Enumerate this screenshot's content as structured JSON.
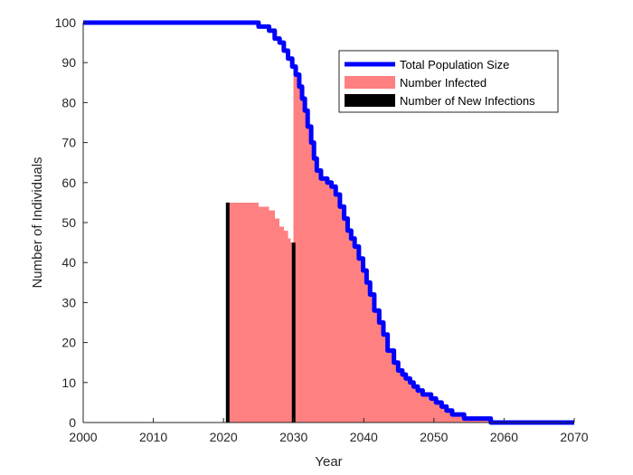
{
  "chart_data": {
    "type": "area",
    "title": "",
    "xlabel": "Year",
    "ylabel": "Number of Individuals",
    "xlim": [
      2000,
      2070
    ],
    "ylim": [
      0,
      100
    ],
    "xticks": [
      2000,
      2010,
      2020,
      2030,
      2040,
      2050,
      2060,
      2070
    ],
    "yticks": [
      0,
      10,
      20,
      30,
      40,
      50,
      60,
      70,
      80,
      90,
      100
    ],
    "grid": false,
    "legend_position": "top-right",
    "series": [
      {
        "name": "Total Population Size",
        "kind": "line",
        "color": "#0000ff",
        "x": [
          2000,
          2024.8,
          2025,
          2026.2,
          2026.5,
          2027.3,
          2028,
          2028.6,
          2029.2,
          2029.8,
          2030.3,
          2030.8,
          2031.2,
          2031.6,
          2032,
          2032.5,
          2032.9,
          2033.3,
          2033.9,
          2034.8,
          2035.4,
          2036,
          2036.6,
          2037.2,
          2037.7,
          2038.2,
          2038.7,
          2039.3,
          2039.9,
          2040.4,
          2040.9,
          2041.5,
          2042.2,
          2042.8,
          2043.4,
          2044.3,
          2044.9,
          2045.5,
          2046,
          2046.6,
          2047.1,
          2047.7,
          2048.4,
          2049.6,
          2050.3,
          2051.1,
          2051.8,
          2052.6,
          2053.3,
          2054.3,
          2054.9,
          2055.8,
          2056.7,
          2057.6,
          2058.1,
          2070
        ],
        "y": [
          100,
          100,
          99,
          99,
          98,
          96,
          95,
          93,
          91,
          89,
          87,
          84,
          81,
          78,
          74,
          70,
          66,
          63,
          61,
          60,
          59,
          57,
          54,
          51,
          48,
          46,
          44,
          41,
          38,
          35,
          32,
          28,
          25,
          22,
          18,
          15,
          13,
          12,
          11,
          10,
          9,
          8,
          7,
          6,
          5,
          4,
          3,
          2,
          2,
          1,
          1,
          1,
          1,
          1,
          0,
          0
        ]
      },
      {
        "name": "Number Infected",
        "kind": "area",
        "color": "#ff8080",
        "x": [
          2020.8,
          2024.6,
          2025,
          2026.2,
          2026.5,
          2027.3,
          2028,
          2028.6,
          2029.2,
          2029.6,
          2030,
          2030.3,
          2030.8,
          2031.2,
          2031.6,
          2032,
          2032.5,
          2032.9,
          2033.3,
          2033.9,
          2034.8,
          2035.4,
          2036,
          2036.6,
          2037.2,
          2037.7,
          2038.2,
          2038.7,
          2039.3,
          2039.9,
          2040.4,
          2040.9,
          2041.5,
          2042.2,
          2042.8,
          2043.4,
          2044.3,
          2044.9,
          2045.5,
          2046,
          2046.6,
          2047.1,
          2047.7,
          2048.4,
          2049.6,
          2050.3,
          2051.1,
          2051.8,
          2052.6,
          2053.3,
          2054.3,
          2054.9,
          2055.8,
          2056.7,
          2057.6,
          2058.1
        ],
        "y": [
          55,
          55,
          54,
          54,
          53,
          51,
          49,
          48,
          46,
          45,
          89,
          87,
          84,
          81,
          78,
          74,
          70,
          66,
          63,
          61,
          60,
          59,
          57,
          54,
          51,
          48,
          46,
          44,
          41,
          38,
          35,
          32,
          28,
          25,
          22,
          18,
          15,
          13,
          12,
          11,
          10,
          9,
          8,
          7,
          6,
          5,
          4,
          3,
          2,
          2,
          1,
          1,
          1,
          1,
          1,
          0
        ]
      },
      {
        "name": "Number of New Infections",
        "kind": "bar",
        "color": "#000000",
        "x": [
          2020.6,
          2030
        ],
        "y": [
          55,
          45
        ]
      }
    ]
  }
}
